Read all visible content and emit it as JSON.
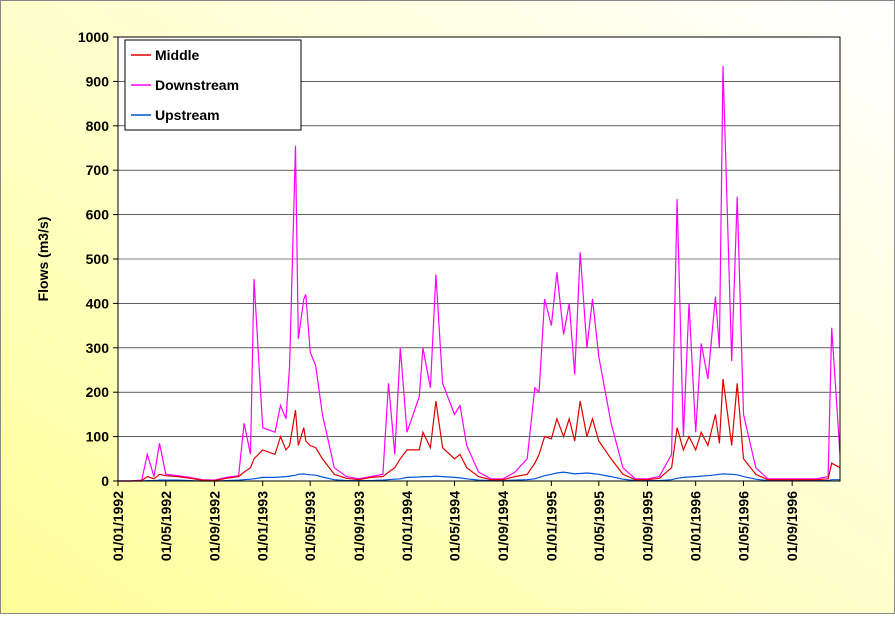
{
  "chart_data": {
    "type": "line",
    "y_label": "Flows (m3/s)",
    "x": [
      "01/01/1992",
      "01/02/1992",
      "01/03/1992",
      "15/03/1992",
      "01/04/1992",
      "15/04/1992",
      "01/05/1992",
      "01/06/1992",
      "01/07/1992",
      "01/08/1992",
      "01/09/1992",
      "01/10/1992",
      "01/11/1992",
      "15/11/1992",
      "01/12/1992",
      "10/12/1992",
      "01/01/1993",
      "01/02/1993",
      "15/02/1993",
      "01/03/1993",
      "10/03/1993",
      "25/03/1993",
      "01/04/1993",
      "15/04/1993",
      "20/04/1993",
      "01/05/1993",
      "15/05/1993",
      "01/06/1993",
      "01/07/1993",
      "01/08/1993",
      "01/09/1993",
      "01/10/1993",
      "01/11/1993",
      "15/11/1993",
      "01/12/1993",
      "15/12/1993",
      "01/01/1994",
      "01/02/1994",
      "10/02/1994",
      "01/03/1994",
      "15/03/1994",
      "01/04/1994",
      "01/05/1994",
      "15/05/1994",
      "01/06/1994",
      "01/07/1994",
      "01/08/1994",
      "01/09/1994",
      "01/10/1994",
      "01/11/1994",
      "20/11/1994",
      "01/12/1994",
      "15/12/1994",
      "01/01/1995",
      "15/01/1995",
      "01/02/1995",
      "15/02/1995",
      "01/03/1995",
      "15/03/1995",
      "01/04/1995",
      "15/04/1995",
      "01/05/1995",
      "01/06/1995",
      "01/07/1995",
      "01/08/1995",
      "01/09/1995",
      "01/10/1995",
      "01/11/1995",
      "15/11/1995",
      "01/12/1995",
      "15/12/1995",
      "01/01/1996",
      "15/01/1996",
      "01/02/1996",
      "20/02/1996",
      "01/03/1996",
      "10/03/1996",
      "01/04/1996",
      "15/04/1996",
      "01/05/1996",
      "01/06/1996",
      "01/07/1996",
      "01/08/1996",
      "01/09/1996",
      "01/10/1996",
      "01/11/1996",
      "01/12/1996",
      "10/12/1996",
      "31/12/1996"
    ],
    "series": [
      {
        "name": "Middle",
        "color": "#e00000",
        "values": [
          0,
          0,
          1,
          10,
          5,
          15,
          12,
          10,
          6,
          2,
          1,
          6,
          10,
          20,
          30,
          50,
          70,
          60,
          100,
          70,
          80,
          160,
          80,
          120,
          90,
          80,
          75,
          50,
          15,
          6,
          3,
          8,
          10,
          20,
          30,
          50,
          70,
          70,
          110,
          75,
          180,
          75,
          50,
          60,
          30,
          10,
          3,
          3,
          10,
          15,
          40,
          60,
          100,
          95,
          140,
          100,
          140,
          90,
          180,
          100,
          140,
          90,
          50,
          15,
          3,
          3,
          6,
          30,
          120,
          70,
          100,
          70,
          110,
          80,
          150,
          85,
          230,
          80,
          220,
          50,
          15,
          3,
          3,
          3,
          3,
          3,
          5,
          40,
          30
        ]
      },
      {
        "name": "Downstream",
        "color": "#ff00ff",
        "values": [
          0,
          0,
          2,
          60,
          10,
          85,
          15,
          12,
          8,
          3,
          2,
          8,
          12,
          130,
          60,
          455,
          120,
          110,
          170,
          140,
          260,
          755,
          320,
          410,
          420,
          290,
          260,
          150,
          30,
          10,
          5,
          10,
          15,
          220,
          60,
          300,
          110,
          190,
          300,
          210,
          465,
          220,
          150,
          170,
          80,
          20,
          5,
          5,
          20,
          50,
          210,
          200,
          410,
          350,
          470,
          330,
          400,
          240,
          515,
          300,
          410,
          280,
          130,
          30,
          5,
          5,
          10,
          60,
          635,
          100,
          400,
          110,
          310,
          230,
          415,
          300,
          935,
          270,
          640,
          150,
          30,
          5,
          5,
          5,
          5,
          5,
          10,
          345,
          60
        ]
      },
      {
        "name": "Upstream",
        "color": "#0055d4",
        "values": [
          0,
          0,
          0,
          1,
          1,
          2,
          2,
          2,
          1,
          0,
          0,
          1,
          2,
          3,
          4,
          5,
          8,
          8,
          9,
          10,
          11,
          13,
          15,
          16,
          15,
          14,
          13,
          9,
          3,
          1,
          1,
          1,
          2,
          3,
          4,
          5,
          8,
          9,
          10,
          10,
          11,
          10,
          8,
          7,
          5,
          2,
          1,
          1,
          2,
          3,
          5,
          8,
          12,
          15,
          18,
          20,
          18,
          16,
          17,
          18,
          17,
          15,
          10,
          4,
          1,
          1,
          1,
          3,
          6,
          8,
          9,
          10,
          11,
          12,
          14,
          15,
          16,
          15,
          14,
          10,
          4,
          1,
          1,
          1,
          1,
          1,
          1,
          3,
          3
        ]
      }
    ],
    "xlim": [
      "01/01/1992",
      "31/12/1996"
    ],
    "xticks": [
      "01/01/1992",
      "01/05/1992",
      "01/09/1992",
      "01/01/1993",
      "01/05/1993",
      "01/09/1993",
      "01/01/1994",
      "01/05/1994",
      "01/09/1994",
      "01/01/1995",
      "01/05/1995",
      "01/09/1995",
      "01/01/1996",
      "01/05/1996",
      "01/09/1996"
    ],
    "ylim": [
      0,
      1000
    ],
    "yticks": [
      0,
      100,
      200,
      300,
      400,
      500,
      600,
      700,
      800,
      900,
      1000
    ],
    "grid": true,
    "legend": "top-left"
  }
}
